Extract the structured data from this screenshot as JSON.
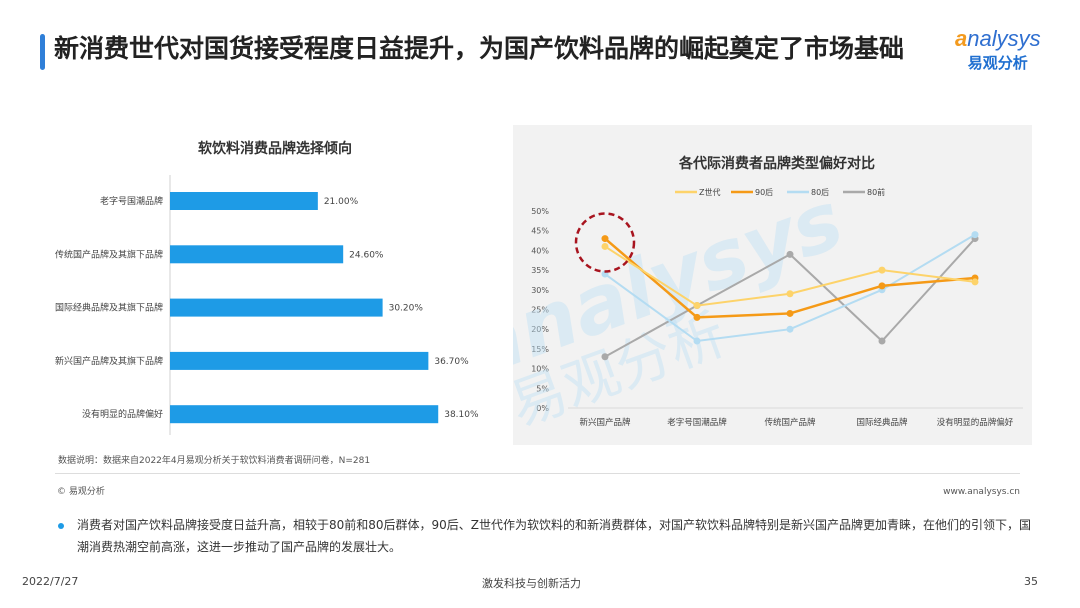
{
  "title": "新消费世代对国货接受程度日益提升，为国产饮料品牌的崛起奠定了市场基础",
  "logo": {
    "en": "analysys",
    "cn": "易观分析"
  },
  "note": "数据说明：数据来自2022年4月易观分析关于软饮料消费者调研问卷，N=281",
  "copyright": "© 易观分析",
  "website": "www.analysys.cn",
  "paragraph": "消费者对国产饮料品牌接受度日益升高，相较于80前和80后群体，90后、Z世代作为软饮料的和新消费群体，对国产软饮料品牌特别是新兴国产品牌更加青睐，在他们的引领下，国潮消费热潮空前高涨，这进一步推动了国产品牌的发展壮大。",
  "footer": {
    "date": "2022/7/27",
    "slogan": "激发科技与创新活力",
    "page": "35"
  },
  "chart_data": [
    {
      "type": "bar",
      "title": "软饮料消费品牌选择倾向",
      "categories": [
        "老字号国潮品牌",
        "传统国产品牌及其旗下品牌",
        "国际经典品牌及其旗下品牌",
        "新兴国产品牌及其旗下品牌",
        "没有明显的品牌偏好"
      ],
      "values": [
        21.0,
        24.6,
        30.2,
        36.7,
        38.1
      ],
      "labels": [
        "21.00%",
        "24.60%",
        "30.20%",
        "36.70%",
        "38.10%"
      ],
      "color": "#1e9be6"
    },
    {
      "type": "line",
      "title": "各代际消费者品牌类型偏好对比",
      "categories": [
        "新兴国产品牌",
        "老字号国潮品牌",
        "传统国产品牌",
        "国际经典品牌",
        "没有明显的品牌偏好"
      ],
      "ylim": [
        0,
        50
      ],
      "yticks": [
        "0%",
        "5%",
        "10%",
        "15%",
        "20%",
        "25%",
        "30%",
        "35%",
        "40%",
        "45%",
        "50%"
      ],
      "series": [
        {
          "name": "Z世代",
          "color": "#fdd36a",
          "values": [
            41,
            26,
            29,
            35,
            32
          ]
        },
        {
          "name": "90后",
          "color": "#f59a17",
          "values": [
            43,
            23,
            24,
            31,
            33
          ]
        },
        {
          "name": "80后",
          "color": "#b4dcf2",
          "values": [
            34,
            17,
            20,
            30,
            44
          ]
        },
        {
          "name": "80前",
          "color": "#a9a9a9",
          "values": [
            13,
            26,
            39,
            17,
            43
          ]
        }
      ]
    }
  ]
}
